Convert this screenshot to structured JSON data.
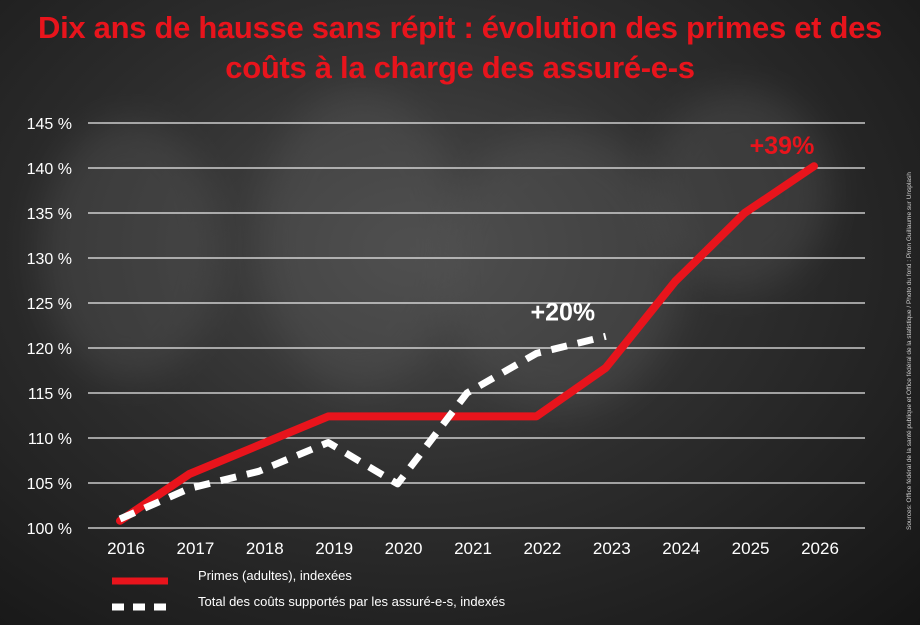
{
  "title": "Dix ans de hausse sans répit : évolution des primes et des coûts à la charge des assuré-e-s",
  "credit": "Sources: Office fédéral de la santé publique et Office fédéral de la statistique / Photo du fond : Piron Guillaume sur Unsplash",
  "colors": {
    "primes": "#e8141c",
    "couts": "#ffffff",
    "title": "#e8141c"
  },
  "chart_data": {
    "type": "line",
    "categories": [
      "2016",
      "2017",
      "2018",
      "2019",
      "2020",
      "2021",
      "2022",
      "2023",
      "2024",
      "2025",
      "2026"
    ],
    "ylim": [
      100,
      145
    ],
    "yticks": [
      100,
      105,
      110,
      115,
      120,
      125,
      130,
      135,
      140,
      145
    ],
    "ytick_labels": [
      "100 %",
      "105 %",
      "110 %",
      "115 %",
      "120 %",
      "125 %",
      "130 %",
      "135 %",
      "140 %",
      "145 %"
    ],
    "grid": true,
    "series": [
      {
        "name": "Primes (adultes), indexées",
        "style": "solid",
        "values": [
          100.8,
          106.0,
          109.2,
          112.4,
          112.4,
          112.4,
          112.4,
          117.8,
          127.4,
          135.0,
          140.2
        ]
      },
      {
        "name": "Total des coûts supportés par les assuré-e-s, indexés",
        "style": "dashed",
        "values": [
          101.0,
          104.4,
          106.3,
          109.5,
          104.9,
          115.0,
          119.4,
          121.3,
          null,
          null,
          null
        ]
      }
    ],
    "annotations": [
      {
        "text": "+39%",
        "series": 0,
        "category": "2026",
        "color": "#e8141c"
      },
      {
        "text": "+20%",
        "series": 1,
        "category": "2023",
        "color": "#ffffff"
      }
    ]
  }
}
